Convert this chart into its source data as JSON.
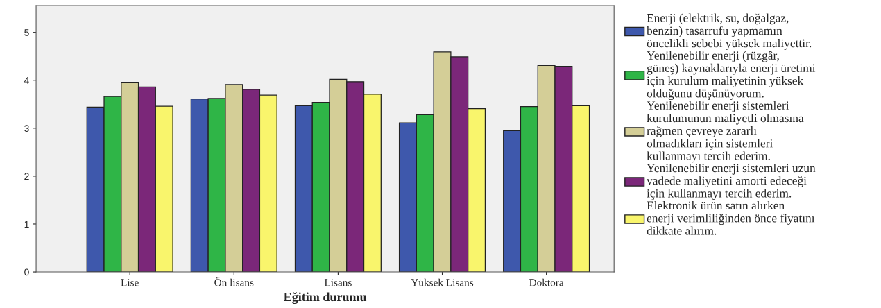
{
  "chart_data": {
    "type": "bar",
    "xlabel": "Eğitim durumu",
    "categories": [
      "Lise",
      "Ön lisans",
      "Lisans",
      "Yüksek Lisans",
      "Doktora"
    ],
    "series": [
      {
        "name": "Enerji (elektrik, su, doğalgaz,\nbenzin) tasarrufu yapmamın\nöncelikli sebebi yüksek maliyettir.",
        "color": "#3e58ac",
        "values": [
          3.44,
          3.61,
          3.47,
          3.11,
          2.95
        ]
      },
      {
        "name": "Yenilenebilir enerji (rüzgâr,\ngüneş) kaynaklarıyla enerji üretimi\niçin kurulum maliyetinin yüksek\nolduğunu düşünüyorum.",
        "color": "#2fb547",
        "values": [
          3.66,
          3.62,
          3.54,
          3.28,
          3.45
        ]
      },
      {
        "name": "Yenilenebilir enerji sistemleri\nkurulumunun maliyetli olmasına\nrağmen çevreye zararlı\nolmadıkları için sistemleri\nkullanmayı tercih ederim.",
        "color": "#d4ce97",
        "values": [
          3.96,
          3.91,
          4.02,
          4.59,
          4.31
        ]
      },
      {
        "name": "Yenilenebilir enerji sistemleri uzun\nvadede maliyetini amorti edeceği\niçin kullanmayı tercih ederim.",
        "color": "#7b2779",
        "values": [
          3.86,
          3.81,
          3.97,
          4.49,
          4.29
        ]
      },
      {
        "name": "Elektronik ürün satın alırken\nenerji verimliliğinden önce fiyatını\ndikkate alırım.",
        "color": "#f9f56c",
        "values": [
          3.46,
          3.69,
          3.71,
          3.41,
          3.47
        ]
      }
    ],
    "ylim": [
      0,
      5.56
    ],
    "yticks": [
      0,
      1,
      2,
      3,
      4,
      5
    ],
    "grid": false,
    "legend": "right"
  }
}
